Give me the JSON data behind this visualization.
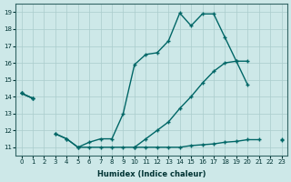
{
  "xlabel": "Humidex (Indice chaleur)",
  "background_color": "#cde8e8",
  "grid_color": "#aacccc",
  "line_color": "#006666",
  "xlim": [
    -0.5,
    23.5
  ],
  "ylim": [
    10.5,
    19.5
  ],
  "series1_x": [
    0,
    1,
    2,
    3,
    4,
    5,
    6,
    7,
    8,
    9,
    10,
    11,
    12,
    13,
    14,
    15,
    16,
    17,
    18,
    19,
    20,
    21,
    22,
    23
  ],
  "series1_y": [
    14.2,
    13.9,
    null,
    11.8,
    11.5,
    11.0,
    11.3,
    11.5,
    11.5,
    13.0,
    15.9,
    16.5,
    16.6,
    17.3,
    18.95,
    18.2,
    18.9,
    18.9,
    17.5,
    16.1,
    14.7,
    null,
    null,
    null
  ],
  "series2_x": [
    0,
    1,
    2,
    3,
    4,
    5,
    6,
    7,
    8,
    9,
    10,
    11,
    12,
    13,
    14,
    15,
    16,
    17,
    18,
    19,
    20,
    21,
    22,
    23
  ],
  "series2_y": [
    14.2,
    13.9,
    null,
    null,
    null,
    null,
    null,
    null,
    null,
    null,
    11.0,
    11.5,
    12.0,
    12.5,
    13.3,
    14.0,
    14.8,
    15.5,
    16.0,
    16.1,
    16.1,
    null,
    null,
    11.5
  ],
  "series3_x": [
    0,
    1,
    2,
    3,
    4,
    5,
    6,
    7,
    8,
    9,
    10,
    11,
    12,
    13,
    14,
    15,
    16,
    17,
    18,
    19,
    20,
    21,
    22,
    23
  ],
  "series3_y": [
    14.2,
    13.9,
    null,
    11.8,
    11.5,
    11.0,
    11.0,
    11.0,
    11.0,
    11.0,
    11.0,
    11.0,
    11.0,
    11.0,
    11.0,
    11.1,
    11.15,
    11.2,
    11.3,
    11.35,
    11.45,
    11.45,
    null,
    11.4
  ]
}
